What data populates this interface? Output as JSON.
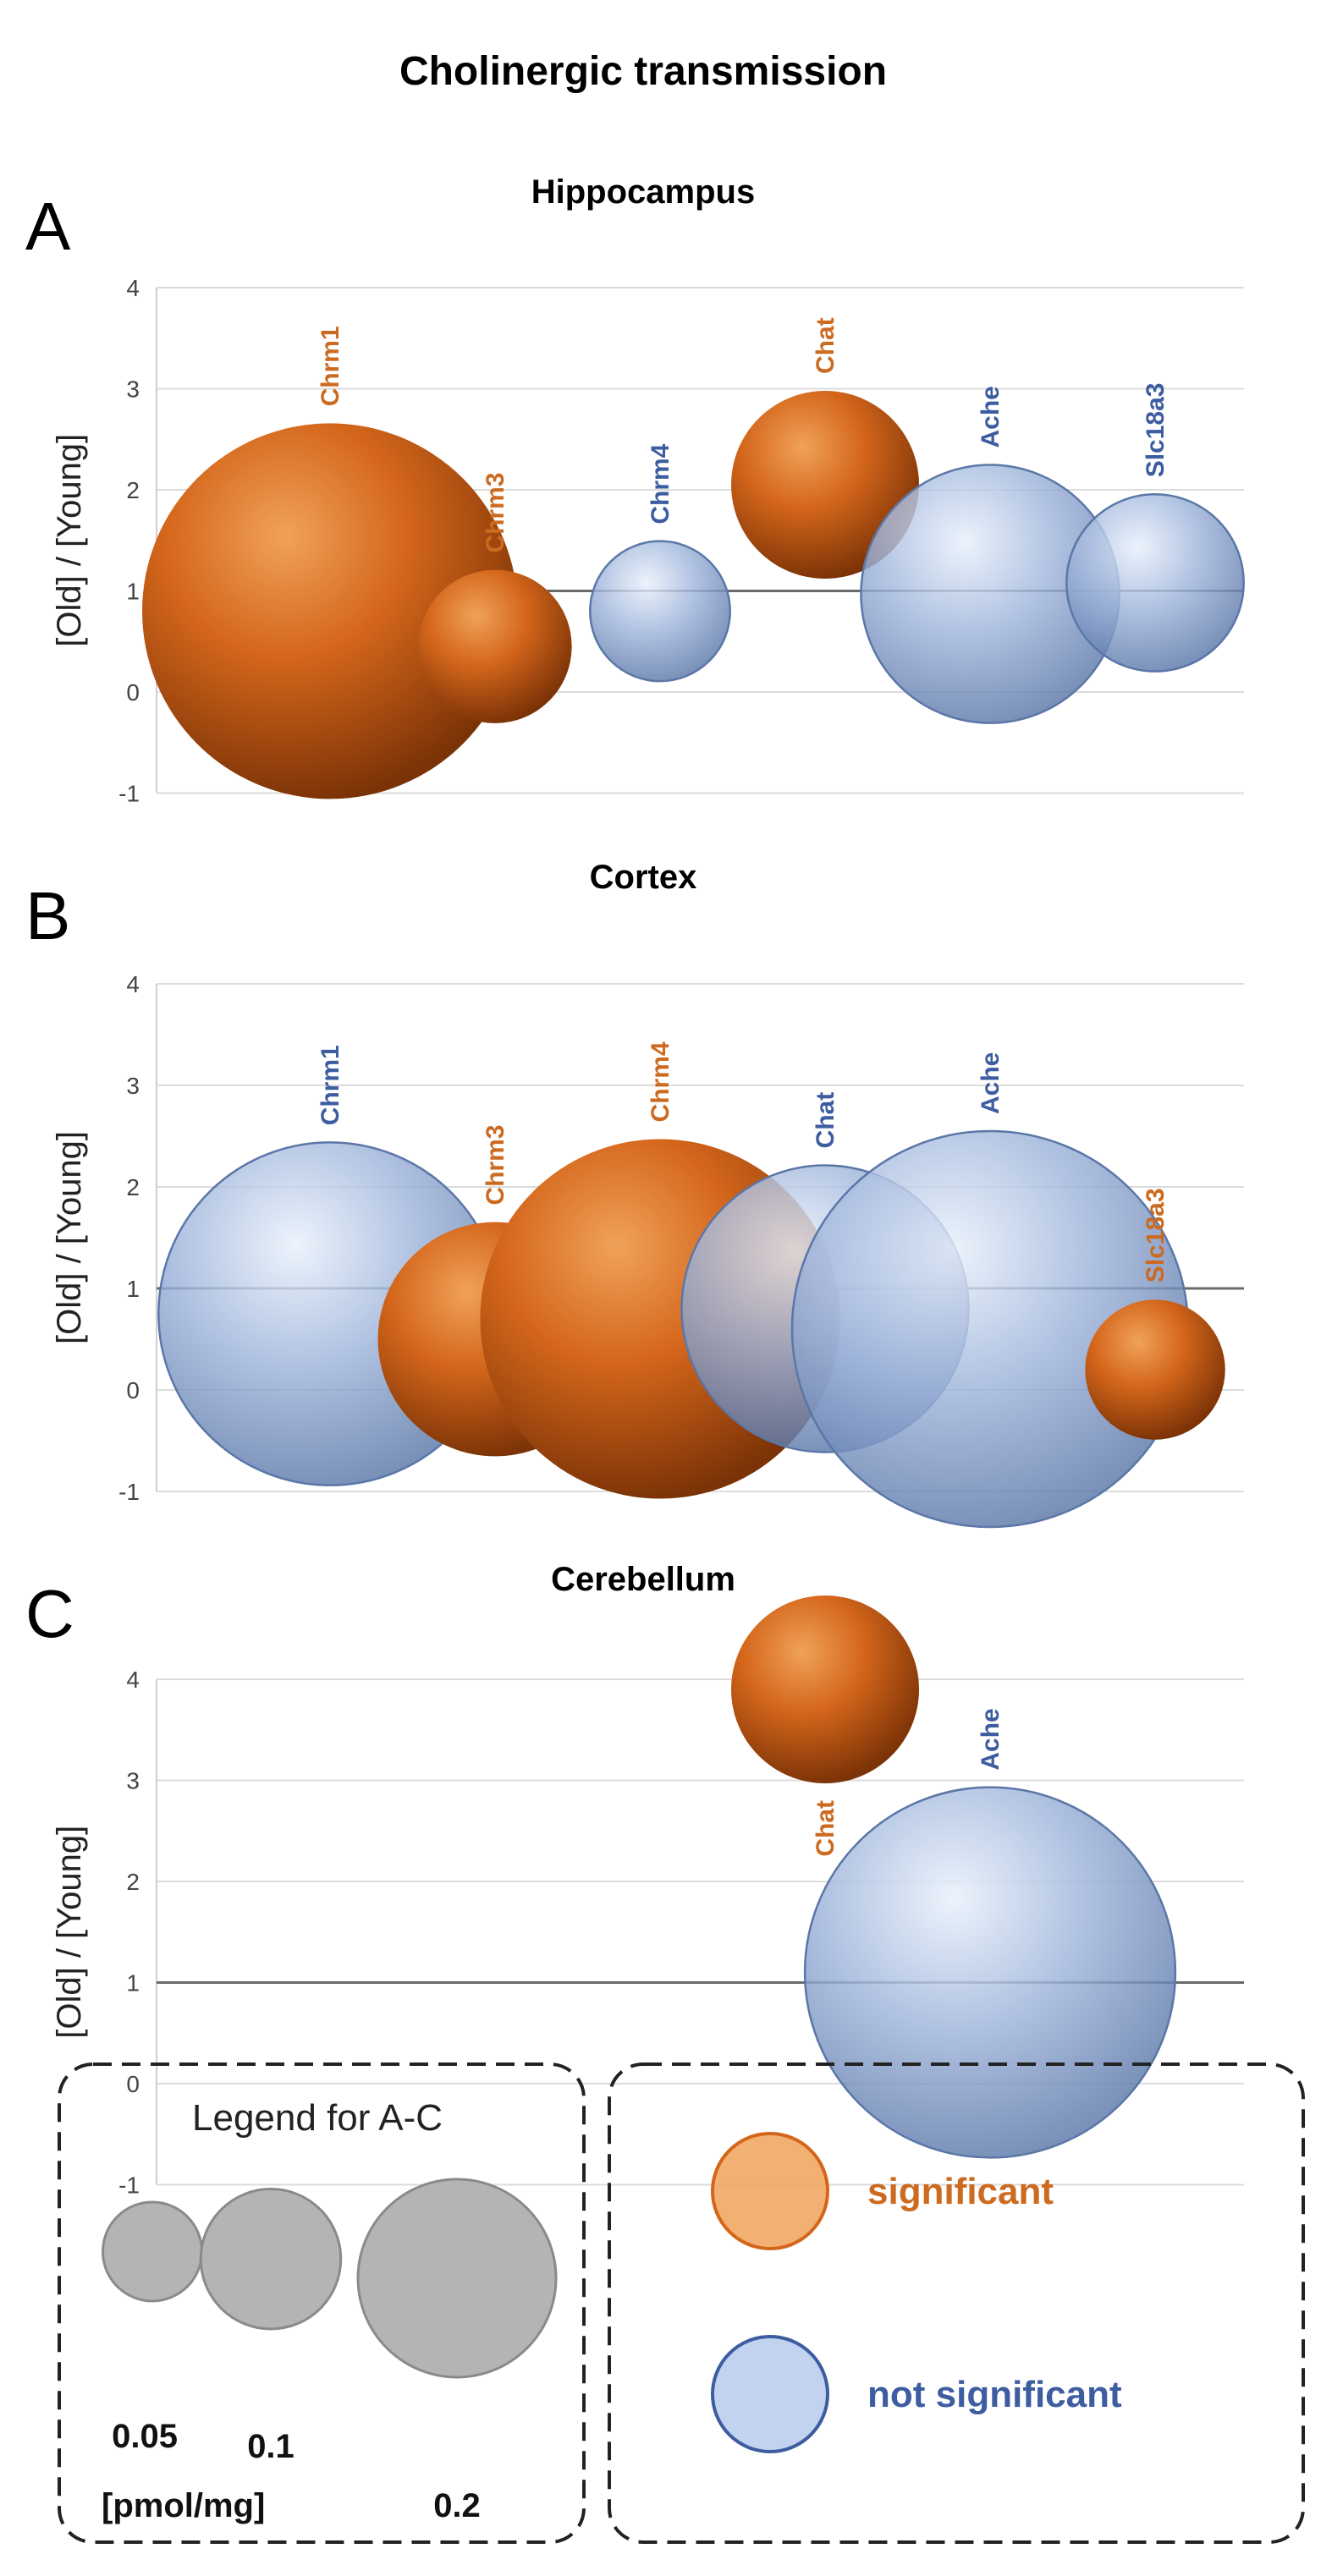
{
  "title": "Cholinergic transmission",
  "colors": {
    "significant_dark": "#7a3206",
    "significant_mid": "#d4661b",
    "significant_light": "#f0a259",
    "significant_text": "#cc6a20",
    "not_significant_dark": "#5b77a8",
    "not_significant_mid": "#9db3da",
    "not_significant_light": "#e8f0fb",
    "not_significant_text": "#3d5da0",
    "legend_gray": "#b4b4b4",
    "reference_line": "#6a6a6a"
  },
  "chart_data": [
    {
      "type": "bubble",
      "letter": "A",
      "title": "Hippocampus",
      "ylabel": "[Old] / [Young]",
      "ylim": [
        -1,
        4
      ],
      "yticks": [
        "-1",
        "0",
        "1",
        "2",
        "3",
        "4"
      ],
      "reference_y": 1,
      "points": [
        {
          "gene": "Chrm1",
          "x": 1,
          "y": 0.8,
          "size": 0.36,
          "significant": true
        },
        {
          "gene": "Chrm3",
          "x": 2,
          "y": 0.45,
          "size": 0.06,
          "significant": true
        },
        {
          "gene": "Chrm4",
          "x": 3,
          "y": 0.8,
          "size": 0.05,
          "significant": false
        },
        {
          "gene": "Chat",
          "x": 4,
          "y": 2.05,
          "size": 0.09,
          "significant": true
        },
        {
          "gene": "Ache",
          "x": 5,
          "y": 0.97,
          "size": 0.17,
          "significant": false
        },
        {
          "gene": "Slc18a3",
          "x": 6,
          "y": 1.08,
          "size": 0.08,
          "significant": false
        }
      ]
    },
    {
      "type": "bubble",
      "letter": "B",
      "title": "Cortex",
      "ylabel": "[Old] / [Young]",
      "ylim": [
        -1,
        4
      ],
      "yticks": [
        "-1",
        "0",
        "1",
        "2",
        "3",
        "4"
      ],
      "reference_y": 1,
      "points": [
        {
          "gene": "Chrm1",
          "x": 1,
          "y": 0.75,
          "size": 0.3,
          "significant": false
        },
        {
          "gene": "Chrm3",
          "x": 2,
          "y": 0.5,
          "size": 0.14,
          "significant": true
        },
        {
          "gene": "Chrm4",
          "x": 3,
          "y": 0.7,
          "size": 0.33,
          "significant": true
        },
        {
          "gene": "Chat",
          "x": 4,
          "y": 0.8,
          "size": 0.21,
          "significant": false
        },
        {
          "gene": "Ache",
          "x": 5,
          "y": 0.6,
          "size": 0.4,
          "significant": false
        },
        {
          "gene": "Slc18a3",
          "x": 6,
          "y": 0.2,
          "size": 0.05,
          "significant": true
        }
      ]
    },
    {
      "type": "bubble",
      "letter": "C",
      "title": "Cerebellum",
      "ylabel": "[Old] / [Young]",
      "ylim": [
        -1,
        4
      ],
      "yticks": [
        "-1",
        "0",
        "1",
        "2",
        "3",
        "4"
      ],
      "reference_y": 1,
      "points": [
        {
          "gene": "Chat",
          "x": 4,
          "y": 3.9,
          "size": 0.09,
          "significant": true
        },
        {
          "gene": "Ache",
          "x": 5,
          "y": 1.1,
          "size": 0.35,
          "significant": false
        }
      ]
    }
  ],
  "legend": {
    "size_title": "Legend for A-C",
    "sizes": [
      {
        "value": 0.05,
        "label": "0.05"
      },
      {
        "value": 0.1,
        "label": "0.1"
      },
      {
        "value": 0.2,
        "label": "0.2"
      }
    ],
    "unit": "[pmol/mg]",
    "significant_label": "significant",
    "not_significant_label": "not significant"
  }
}
